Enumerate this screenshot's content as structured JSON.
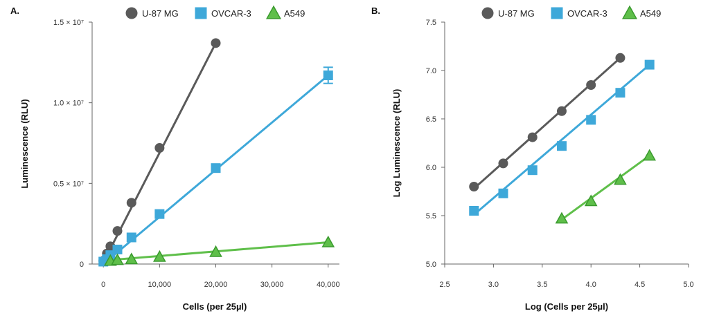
{
  "colors": {
    "u87": "#5a5a5a",
    "ovcar": "#3ea8d9",
    "a549": "#5fbf4a",
    "a549_edge": "#3a9a2e",
    "axis": "#666666"
  },
  "chart_data": [
    {
      "panel_label": "A.",
      "type": "scatter",
      "xlabel": "Cells (per 25µl)",
      "ylabel": "Luminescence (RLU)",
      "xlim": [
        -2000,
        42000
      ],
      "ylim": [
        0,
        15000000
      ],
      "x_ticks": [
        0,
        10000,
        20000,
        30000,
        40000
      ],
      "x_tick_labels": [
        "0",
        "10,000",
        "20,000",
        "30,000",
        "40,000"
      ],
      "y_ticks": [
        0,
        5000000,
        10000000,
        15000000
      ],
      "y_tick_labels": [
        "0",
        "0.5 × 10⁷",
        "1.0 × 10⁷",
        "1.5 × 10⁷"
      ],
      "legend": "top",
      "series": [
        {
          "name": "U-87 MG",
          "marker": "circle",
          "color_key": "u87",
          "x": [
            0,
            625,
            1250,
            2500,
            5000,
            10000,
            20000
          ],
          "y": [
            200000,
            650000,
            1100000,
            2050000,
            3800000,
            7200000,
            13700000
          ],
          "fit": [
            [
              0,
              100000
            ],
            [
              20000,
              13700000
            ]
          ]
        },
        {
          "name": "OVCAR-3",
          "marker": "square",
          "color_key": "ovcar",
          "x": [
            0,
            625,
            1250,
            2500,
            5000,
            10000,
            20000,
            40000
          ],
          "y": [
            150000,
            300000,
            550000,
            900000,
            1650000,
            3100000,
            5950000,
            11700000
          ],
          "err": [
            0,
            0,
            0,
            0,
            0,
            0,
            0,
            500000
          ],
          "fit": [
            [
              0,
              0
            ],
            [
              40000,
              11700000
            ]
          ]
        },
        {
          "name": "A549",
          "marker": "triangle",
          "color_key": "a549",
          "x": [
            1250,
            2500,
            5000,
            10000,
            20000,
            40000
          ],
          "y": [
            200000,
            250000,
            300000,
            450000,
            750000,
            1350000
          ],
          "fit": [
            [
              1250,
              250000
            ],
            [
              40000,
              1350000
            ]
          ]
        }
      ]
    },
    {
      "panel_label": "B.",
      "type": "scatter",
      "xlabel": "Log (Cells per 25µl)",
      "ylabel": "Log Luminescence (RLU)",
      "xlim": [
        2.5,
        5.0
      ],
      "ylim": [
        5.0,
        7.5
      ],
      "x_ticks": [
        2.5,
        3.0,
        3.5,
        4.0,
        4.5,
        5.0
      ],
      "x_tick_labels": [
        "2.5",
        "3.0",
        "3.5",
        "4.0",
        "4.5",
        "5.0"
      ],
      "y_ticks": [
        5.0,
        5.5,
        6.0,
        6.5,
        7.0,
        7.5
      ],
      "y_tick_labels": [
        "5.0",
        "5.5",
        "6.0",
        "6.5",
        "7.0",
        "7.5"
      ],
      "legend": "top",
      "series": [
        {
          "name": "U-87 MG",
          "marker": "circle",
          "color_key": "u87",
          "x": [
            2.8,
            3.1,
            3.4,
            3.7,
            4.0,
            4.3
          ],
          "y": [
            5.8,
            6.04,
            6.31,
            6.58,
            6.85,
            7.13
          ],
          "fit": [
            [
              2.8,
              5.78
            ],
            [
              4.3,
              7.13
            ]
          ]
        },
        {
          "name": "OVCAR-3",
          "marker": "square",
          "color_key": "ovcar",
          "x": [
            2.8,
            3.1,
            3.4,
            3.7,
            4.0,
            4.3,
            4.6
          ],
          "y": [
            5.55,
            5.73,
            5.97,
            6.22,
            6.49,
            6.77,
            7.06
          ],
          "fit": [
            [
              2.8,
              5.51
            ],
            [
              4.6,
              7.06
            ]
          ]
        },
        {
          "name": "A549",
          "marker": "triangle",
          "color_key": "a549",
          "x": [
            3.7,
            4.0,
            4.3,
            4.6
          ],
          "y": [
            5.47,
            5.65,
            5.87,
            6.12
          ],
          "fit": [
            [
              3.7,
              5.46
            ],
            [
              4.6,
              6.12
            ]
          ]
        }
      ]
    }
  ]
}
